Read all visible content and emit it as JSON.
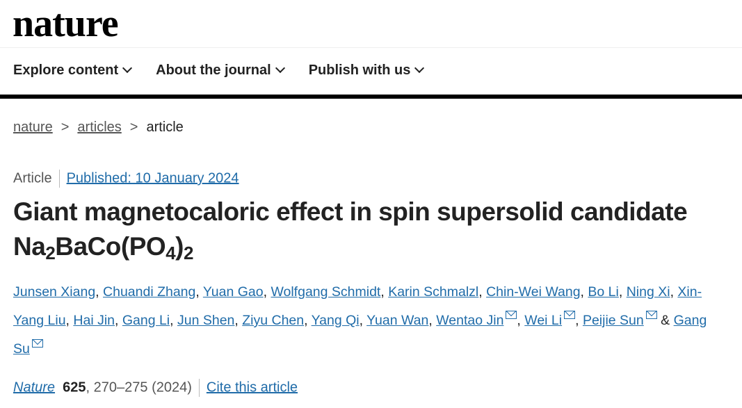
{
  "logo": "nature",
  "nav": [
    {
      "label": "Explore content"
    },
    {
      "label": "About the journal"
    },
    {
      "label": "Publish with us"
    }
  ],
  "breadcrumb": [
    {
      "label": "nature"
    },
    {
      "label": "articles"
    },
    {
      "label": "article"
    }
  ],
  "meta": {
    "type": "Article",
    "published": "Published: 10 January 2024"
  },
  "title": {
    "part1": "Giant magnetocaloric effect in spin supersolid candidate Na",
    "sub1": "2",
    "part2": "BaCo(PO",
    "sub2": "4",
    "part3": ")",
    "sub3": "2"
  },
  "authors": [
    {
      "name": "Junsen Xiang"
    },
    {
      "name": "Chuandi Zhang"
    },
    {
      "name": "Yuan Gao"
    },
    {
      "name": "Wolfgang Schmidt"
    },
    {
      "name": "Karin Schmalzl"
    },
    {
      "name": "Chin-Wei Wang"
    },
    {
      "name": "Bo Li"
    },
    {
      "name": "Ning Xi"
    },
    {
      "name": "Xin-Yang Liu"
    },
    {
      "name": "Hai Jin"
    },
    {
      "name": "Gang Li"
    },
    {
      "name": "Jun Shen"
    },
    {
      "name": "Ziyu Chen"
    },
    {
      "name": "Yang Qi"
    },
    {
      "name": "Yuan Wan"
    },
    {
      "name": "Wentao Jin",
      "mail": true
    },
    {
      "name": "Wei Li",
      "mail": true
    },
    {
      "name": "Peijie Sun",
      "mail": true
    },
    {
      "name": "Gang Su",
      "mail": true
    }
  ],
  "authors_and": "&",
  "citation": {
    "journal": "Nature",
    "volume": "625",
    "pages": ", 270–275 (2024)",
    "cite_label": "Cite this article"
  },
  "colors": {
    "link": "#206ca9"
  }
}
